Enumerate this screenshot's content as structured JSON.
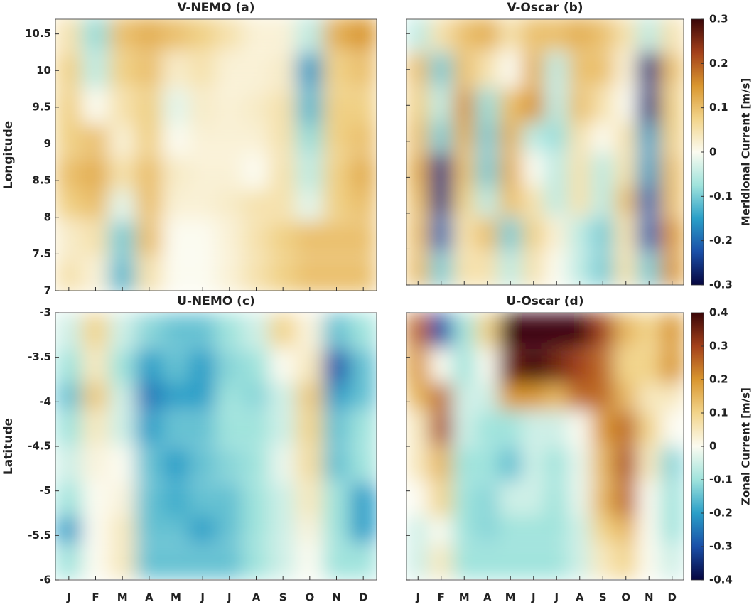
{
  "chart_data": [
    {
      "type": "heatmap",
      "title": "V-NEMO (a)",
      "ylabel": "Longitude",
      "categories": [
        null,
        null,
        null,
        null,
        null,
        null,
        null,
        null,
        null,
        null,
        null,
        null
      ],
      "y": [
        7.2,
        7.7,
        8.2,
        8.6,
        9.1,
        9.5,
        10.0,
        10.5
      ],
      "ylim": [
        7,
        10.7
      ],
      "yticks": [
        7,
        7.5,
        8,
        8.5,
        9,
        9.5,
        10,
        10.5
      ],
      "show_yticklabels": true,
      "clim": [
        -0.3,
        0.3
      ],
      "colormap": [
        "#06063f",
        "#1a4fa8",
        "#2a9fc8",
        "#9fe3dc",
        "#fbfbf0",
        "#f2d48a",
        "#d9962f",
        "#a3401a",
        "#3a0608"
      ],
      "values": [
        [
          0.05,
          0.02,
          -0.12,
          0.05,
          0.0,
          0.0,
          0.02,
          0.05,
          0.08,
          0.1,
          0.1,
          0.1
        ],
        [
          0.03,
          0.05,
          -0.1,
          0.1,
          0.0,
          0.0,
          0.02,
          0.05,
          0.08,
          0.1,
          0.1,
          0.1
        ],
        [
          0.08,
          0.1,
          -0.02,
          0.1,
          0.02,
          0.02,
          0.03,
          0.05,
          0.05,
          -0.02,
          0.08,
          0.1
        ],
        [
          0.1,
          0.12,
          0.05,
          0.1,
          0.03,
          0.02,
          0.02,
          0.0,
          0.05,
          -0.05,
          0.08,
          0.12
        ],
        [
          0.08,
          0.1,
          0.02,
          0.08,
          0.0,
          0.02,
          0.02,
          0.02,
          0.05,
          -0.08,
          0.08,
          0.1
        ],
        [
          0.08,
          0.0,
          0.05,
          0.08,
          -0.02,
          0.03,
          0.02,
          0.03,
          0.05,
          -0.12,
          0.08,
          0.08
        ],
        [
          0.08,
          -0.05,
          0.08,
          0.1,
          0.03,
          0.05,
          0.02,
          0.02,
          0.03,
          -0.15,
          0.08,
          0.1
        ],
        [
          0.05,
          -0.08,
          0.1,
          0.12,
          0.1,
          0.08,
          0.05,
          0.02,
          0.02,
          -0.05,
          0.12,
          0.15
        ]
      ]
    },
    {
      "type": "heatmap",
      "title": "V-Oscar (b)",
      "categories": [
        null,
        null,
        null,
        null,
        null,
        null,
        null,
        null,
        null,
        null,
        null,
        null
      ],
      "y": [
        7.2,
        7.7,
        8.2,
        8.6,
        9.1,
        9.5,
        10.0,
        10.5
      ],
      "ylim": [
        7,
        10.7
      ],
      "yticks": [
        7,
        7.5,
        8,
        8.5,
        9,
        9.5,
        10,
        10.5
      ],
      "show_yticklabels": false,
      "clim": [
        -0.3,
        0.3
      ],
      "colormap": [
        "#06063f",
        "#1a4fa8",
        "#2a9fc8",
        "#9fe3dc",
        "#fbfbf0",
        "#f2d48a",
        "#d9962f",
        "#a3401a",
        "#3a0608"
      ],
      "colorbar": {
        "label": "Meridional Current [m/s]",
        "ticks": [
          0.3,
          0.2,
          0.1,
          0,
          -0.1,
          -0.2,
          -0.3
        ]
      },
      "values": [
        [
          0.1,
          -0.1,
          0.05,
          0.05,
          -0.05,
          0.05,
          0.0,
          -0.05,
          -0.1,
          0.05,
          -0.1,
          0.15
        ],
        [
          0.1,
          -0.2,
          0.05,
          0.1,
          -0.1,
          0.08,
          0.02,
          -0.05,
          -0.1,
          0.05,
          -0.2,
          0.15
        ],
        [
          0.1,
          -0.25,
          0.08,
          -0.05,
          0.1,
          0.05,
          -0.05,
          0.05,
          -0.05,
          0.1,
          -0.2,
          0.1
        ],
        [
          0.12,
          -0.25,
          0.1,
          -0.1,
          0.12,
          0.0,
          -0.05,
          0.05,
          -0.05,
          0.05,
          -0.15,
          0.1
        ],
        [
          0.1,
          -0.1,
          0.12,
          -0.1,
          0.12,
          -0.05,
          -0.08,
          0.05,
          0.0,
          0.05,
          -0.15,
          0.08
        ],
        [
          0.08,
          -0.05,
          0.15,
          -0.08,
          0.1,
          0.15,
          -0.05,
          0.1,
          0.05,
          0.0,
          -0.25,
          0.08
        ],
        [
          0.1,
          -0.1,
          0.1,
          0.05,
          0.0,
          0.12,
          -0.05,
          0.1,
          0.1,
          0.02,
          -0.25,
          0.1
        ],
        [
          -0.05,
          0.05,
          0.1,
          0.12,
          0.05,
          0.1,
          0.1,
          0.12,
          0.1,
          0.05,
          -0.05,
          0.05
        ]
      ]
    },
    {
      "type": "heatmap",
      "title": "U-NEMO (c)",
      "ylabel": "Latitude",
      "categories": [
        "J",
        "F",
        "M",
        "A",
        "M",
        "J",
        "J",
        "A",
        "S",
        "O",
        "N",
        "D"
      ],
      "y": [
        -5.8,
        -5.4,
        -5.1,
        -4.7,
        -4.3,
        -3.9,
        -3.6,
        -3.2
      ],
      "ylim": [
        -6,
        -3
      ],
      "yticks": [
        -6,
        -5.5,
        -5,
        -4.5,
        -4,
        -3.5,
        -3
      ],
      "show_yticklabels": true,
      "clim": [
        -0.4,
        0.4
      ],
      "colormap": [
        "#06063f",
        "#1a4fa8",
        "#2a9fc8",
        "#9fe3dc",
        "#fbfbf0",
        "#f2d48a",
        "#d9962f",
        "#a3401a",
        "#3a0608"
      ],
      "values": [
        [
          -0.1,
          0.0,
          0.05,
          -0.15,
          -0.15,
          -0.15,
          -0.15,
          -0.1,
          -0.05,
          0.0,
          -0.1,
          -0.1
        ],
        [
          -0.2,
          0.0,
          0.05,
          -0.15,
          -0.15,
          -0.2,
          -0.15,
          -0.1,
          -0.05,
          0.02,
          -0.1,
          -0.2
        ],
        [
          -0.1,
          0.0,
          0.02,
          -0.15,
          -0.18,
          -0.15,
          -0.15,
          -0.1,
          -0.05,
          0.05,
          -0.1,
          -0.2
        ],
        [
          -0.05,
          0.02,
          0.0,
          -0.15,
          -0.2,
          -0.15,
          -0.12,
          -0.1,
          -0.02,
          0.08,
          -0.15,
          -0.1
        ],
        [
          -0.1,
          0.05,
          -0.05,
          -0.2,
          -0.15,
          -0.15,
          -0.1,
          -0.1,
          -0.05,
          0.1,
          -0.15,
          -0.1
        ],
        [
          -0.15,
          0.12,
          -0.05,
          -0.25,
          -0.2,
          -0.2,
          -0.1,
          -0.12,
          -0.05,
          0.12,
          -0.2,
          -0.15
        ],
        [
          -0.1,
          0.05,
          -0.1,
          -0.2,
          -0.15,
          -0.2,
          -0.12,
          -0.1,
          0.0,
          0.05,
          -0.28,
          -0.15
        ],
        [
          -0.05,
          0.1,
          -0.05,
          -0.12,
          -0.15,
          -0.15,
          -0.1,
          -0.05,
          0.1,
          0.02,
          -0.15,
          -0.1
        ]
      ]
    },
    {
      "type": "heatmap",
      "title": "U-Oscar (d)",
      "categories": [
        "J",
        "F",
        "M",
        "A",
        "M",
        "J",
        "J",
        "A",
        "S",
        "O",
        "N",
        "D"
      ],
      "y": [
        -5.8,
        -5.4,
        -5.1,
        -4.7,
        -4.3,
        -3.9,
        -3.6,
        -3.2
      ],
      "ylim": [
        -6,
        -3
      ],
      "yticks": [
        -6,
        -5.5,
        -5,
        -4.5,
        -4,
        -3.5,
        -3
      ],
      "show_yticklabels": false,
      "clim": [
        -0.4,
        0.4
      ],
      "colormap": [
        "#06063f",
        "#1a4fa8",
        "#2a9fc8",
        "#9fe3dc",
        "#fbfbf0",
        "#f2d48a",
        "#d9962f",
        "#a3401a",
        "#3a0608"
      ],
      "colorbar": {
        "label": "Zonal Current [m/s]",
        "ticks": [
          0.4,
          0.3,
          0.2,
          0.1,
          0,
          -0.1,
          -0.2,
          -0.3,
          -0.4
        ]
      },
      "values": [
        [
          -0.05,
          0.05,
          -0.1,
          -0.1,
          -0.1,
          -0.1,
          -0.1,
          -0.05,
          0.05,
          0.1,
          0.0,
          -0.05
        ],
        [
          -0.05,
          0.0,
          -0.1,
          -0.12,
          -0.1,
          -0.1,
          -0.1,
          -0.05,
          0.1,
          0.15,
          0.0,
          -0.1
        ],
        [
          0.0,
          0.1,
          -0.1,
          -0.12,
          -0.05,
          -0.05,
          -0.1,
          -0.02,
          0.15,
          0.25,
          0.0,
          -0.1
        ],
        [
          0.05,
          0.15,
          -0.1,
          -0.1,
          -0.15,
          -0.05,
          -0.1,
          -0.02,
          0.15,
          0.28,
          0.05,
          -0.12
        ],
        [
          0.05,
          0.28,
          -0.05,
          -0.1,
          -0.1,
          -0.05,
          -0.05,
          0.0,
          0.2,
          0.25,
          0.1,
          0.0
        ],
        [
          0.15,
          0.25,
          -0.05,
          -0.05,
          0.2,
          0.2,
          0.15,
          0.25,
          0.25,
          0.15,
          0.05,
          0.05
        ],
        [
          0.2,
          0.0,
          -0.1,
          0.0,
          0.35,
          0.4,
          0.35,
          0.3,
          0.25,
          0.1,
          0.1,
          0.2
        ],
        [
          0.25,
          -0.3,
          -0.1,
          0.1,
          0.4,
          0.4,
          0.4,
          0.4,
          0.3,
          0.15,
          0.1,
          0.2
        ]
      ]
    }
  ]
}
